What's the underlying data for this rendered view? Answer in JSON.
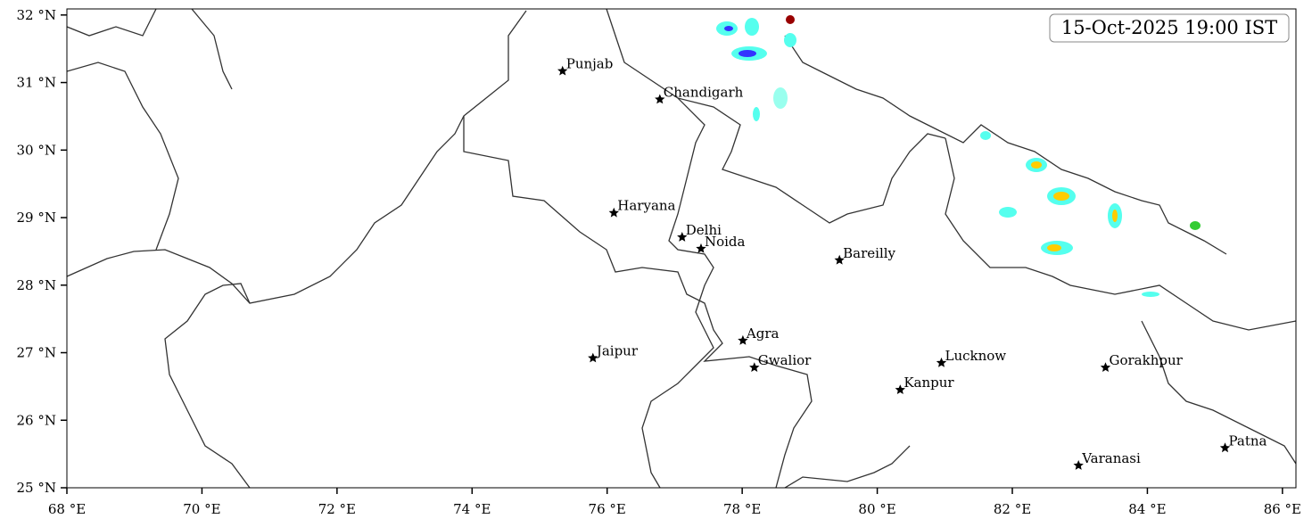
{
  "map": {
    "timestamp": "15-Oct-2025 19:00 IST",
    "xlim": [
      68,
      86.2
    ],
    "ylim": [
      25,
      32.09
    ],
    "xticks": [
      {
        "value": 68,
        "label": "68 °E"
      },
      {
        "value": 70,
        "label": "70 °E"
      },
      {
        "value": 72,
        "label": "72 °E"
      },
      {
        "value": 74,
        "label": "74 °E"
      },
      {
        "value": 76,
        "label": "76 °E"
      },
      {
        "value": 78,
        "label": "78 °E"
      },
      {
        "value": 80,
        "label": "80 °E"
      },
      {
        "value": 82,
        "label": "82 °E"
      },
      {
        "value": 84,
        "label": "84 °E"
      },
      {
        "value": 86,
        "label": "86 °E"
      }
    ],
    "yticks": [
      {
        "value": 25,
        "label": "25 °N"
      },
      {
        "value": 26,
        "label": "26 °N"
      },
      {
        "value": 27,
        "label": "27 °N"
      },
      {
        "value": 28,
        "label": "28 °N"
      },
      {
        "value": 29,
        "label": "29 °N"
      },
      {
        "value": 30,
        "label": "30 °N"
      },
      {
        "value": 31,
        "label": "31 °N"
      },
      {
        "value": 32,
        "label": "32 °N"
      }
    ],
    "cities": [
      {
        "name": "Punjab",
        "lon": 75.34,
        "lat": 31.17
      },
      {
        "name": "Chandigarh",
        "lon": 76.78,
        "lat": 30.75
      },
      {
        "name": "Haryana",
        "lon": 76.1,
        "lat": 29.07
      },
      {
        "name": "Delhi",
        "lon": 77.11,
        "lat": 28.71
      },
      {
        "name": "Noida",
        "lon": 77.39,
        "lat": 28.54
      },
      {
        "name": "Bareilly",
        "lon": 79.44,
        "lat": 28.37
      },
      {
        "name": "Agra",
        "lon": 78.01,
        "lat": 27.18
      },
      {
        "name": "Jaipur",
        "lon": 75.79,
        "lat": 26.92
      },
      {
        "name": "Gwalior",
        "lon": 78.18,
        "lat": 26.78
      },
      {
        "name": "Lucknow",
        "lon": 80.95,
        "lat": 26.85
      },
      {
        "name": "Kanpur",
        "lon": 80.34,
        "lat": 26.45
      },
      {
        "name": "Gorakhpur",
        "lon": 83.38,
        "lat": 26.78
      },
      {
        "name": "Varanasi",
        "lon": 82.98,
        "lat": 25.33
      },
      {
        "name": "Patna",
        "lon": 85.15,
        "lat": 25.59
      }
    ]
  }
}
